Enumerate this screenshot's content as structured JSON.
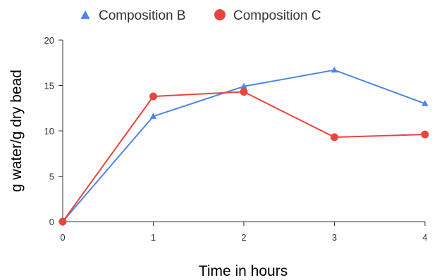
{
  "chart_data": {
    "type": "line",
    "x": [
      0,
      1,
      2,
      3,
      4
    ],
    "series": [
      {
        "name": "Composition B",
        "values": [
          0,
          11.6,
          14.9,
          16.7,
          13.0
        ],
        "color": "#4a86e8",
        "marker": "triangle"
      },
      {
        "name": "Composition C",
        "values": [
          0,
          13.8,
          14.3,
          9.3,
          9.6
        ],
        "color": "#e8453c",
        "marker": "circle"
      }
    ],
    "xlabel": "Time in hours",
    "ylabel": "g water/g dry bead",
    "xlim": [
      0,
      4
    ],
    "ylim": [
      0,
      20
    ],
    "xticks": [
      "0",
      "1",
      "2",
      "3",
      "4"
    ],
    "yticks": [
      "0",
      "5",
      "10",
      "15",
      "20"
    ],
    "legend_position": "top",
    "grid": false
  }
}
